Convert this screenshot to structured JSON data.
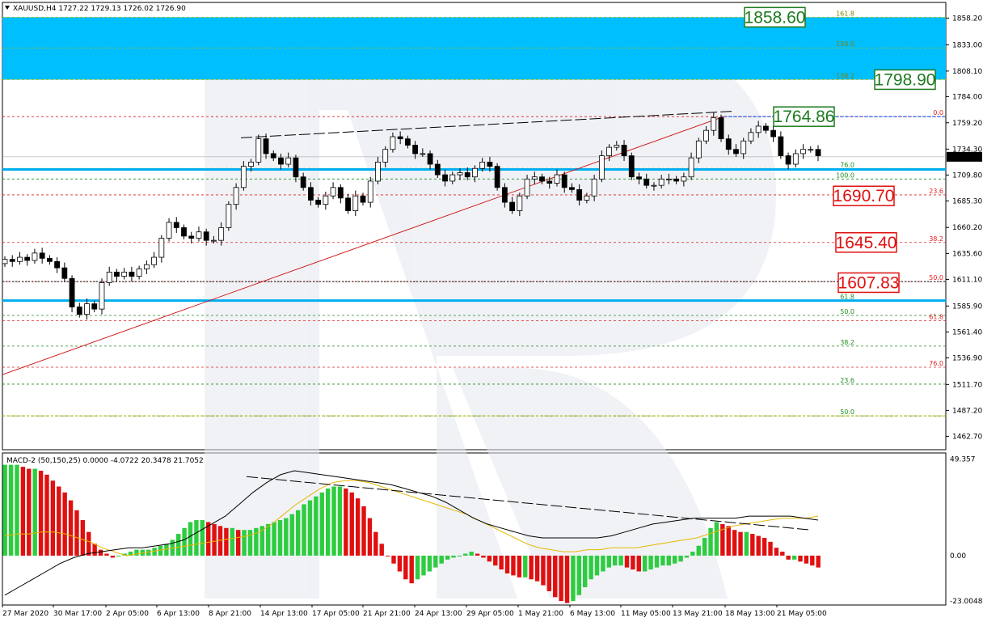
{
  "header": {
    "symbol": "XAUUSD,H4",
    "ohlc": "1727.22 1729.13 1726.02 1726.90"
  },
  "macd_header": "MACD-2 (50,150,25) 0.0000 -4.0722 20.3478 21.7052",
  "chart_data": {
    "type": "candlestick",
    "price_axis": {
      "range": [
        1450,
        1873
      ],
      "ticks": [
        "1858.20",
        "1833.00",
        "1808.10",
        "1784.00",
        "1759.20",
        "1734.30",
        "1709.80",
        "1685.30",
        "1660.20",
        "1635.60",
        "1611.10",
        "1585.90",
        "1561.40",
        "1536.90",
        "1511.70",
        "1487.20",
        "1462.70"
      ]
    },
    "current_price": "1726.90",
    "time_axis": [
      "27 Mar 2020",
      "30 Mar 17:00",
      "2 Apr 05:00",
      "6 Apr 13:00",
      "8 Apr 21:00",
      "14 Apr 13:00",
      "17 Apr 05:00",
      "21 Apr 21:00",
      "24 Apr 13:00",
      "29 Apr 05:00",
      "1 May 21:00",
      "6 May 13:00",
      "11 May 05:00",
      "13 May 21:00",
      "18 May 13:00",
      "21 May 05:00"
    ],
    "close_path": [
      1630,
      1628,
      1632,
      1629,
      1636,
      1631,
      1628,
      1622,
      1612,
      1585,
      1578,
      1588,
      1583,
      1608,
      1618,
      1614,
      1618,
      1614,
      1621,
      1625,
      1632,
      1650,
      1665,
      1660,
      1652,
      1650,
      1656,
      1648,
      1648,
      1660,
      1682,
      1698,
      1718,
      1722,
      1744,
      1730,
      1726,
      1720,
      1726,
      1708,
      1698,
      1686,
      1682,
      1690,
      1698,
      1688,
      1676,
      1690,
      1684,
      1704,
      1722,
      1734,
      1746,
      1744,
      1738,
      1730,
      1730,
      1720,
      1710,
      1704,
      1710,
      1712,
      1708,
      1716,
      1722,
      1718,
      1698,
      1684,
      1676,
      1690,
      1706,
      1708,
      1704,
      1702,
      1710,
      1698,
      1696,
      1686,
      1690,
      1706,
      1728,
      1736,
      1738,
      1728,
      1708,
      1706,
      1700,
      1700,
      1706,
      1706,
      1704,
      1708,
      1726,
      1742,
      1752,
      1764,
      1744,
      1734,
      1730,
      1742,
      1750,
      1756,
      1752,
      1746,
      1728,
      1720,
      1730,
      1734,
      1734,
      1728
    ],
    "levels": [
      {
        "price": "1858.60",
        "label": "1858.60",
        "color": "#1e7a1e"
      },
      {
        "price": "1798.90",
        "label": "1798.90",
        "color": "#1e7a1e"
      },
      {
        "price": "1764.86",
        "label": "1764.86",
        "color": "#1e7a1e"
      },
      {
        "price": "1690.70",
        "label": "1690.70",
        "color": "#e01010"
      },
      {
        "price": "1645.40",
        "label": "1645.40",
        "color": "#e01010"
      },
      {
        "price": "1607.83",
        "label": "1607.83",
        "color": "#e01010"
      }
    ],
    "fib_red": [
      {
        "label": "0.0",
        "price": 1765
      },
      {
        "label": "23.6",
        "price": 1691
      },
      {
        "label": "38.2",
        "price": 1646
      },
      {
        "label": "50.0",
        "price": 1609
      },
      {
        "label": "61.8",
        "price": 1572
      },
      {
        "label": "76.0",
        "price": 1528
      }
    ],
    "fib_green": [
      {
        "label": "161.8",
        "price": 1859
      },
      {
        "label": "150.0",
        "price": 1830
      },
      {
        "label": "138.2",
        "price": 1800
      },
      {
        "label": "100.0",
        "price": 1706
      },
      {
        "label": "76.0",
        "price": 1716
      },
      {
        "label": "61.8",
        "price": 1591
      },
      {
        "label": "50.0",
        "price": 1577
      },
      {
        "label": "38.2",
        "price": 1548
      },
      {
        "label": "23.6",
        "price": 1512
      },
      {
        "label": "50.0",
        "price": 1482
      }
    ],
    "zones": [
      {
        "from": 1800,
        "to": 1859,
        "color": "#00bfff"
      }
    ],
    "blue_lines": [
      1715,
      1591
    ],
    "macd": {
      "axis_ticks": [
        "49.357",
        "0.00",
        "-23.0048"
      ],
      "range": [
        -25,
        52
      ],
      "histogram": [
        46,
        46,
        46,
        45,
        44,
        44,
        43,
        41,
        38,
        35,
        32,
        28,
        23,
        18,
        12,
        6,
        3,
        1,
        -1,
        0,
        1,
        2,
        3,
        3,
        3,
        4,
        5,
        6,
        8,
        11,
        14,
        17,
        18,
        18,
        17,
        16,
        15,
        14,
        14,
        13,
        13,
        13,
        14,
        15,
        16,
        17,
        18,
        19,
        21,
        23,
        26,
        28,
        30,
        32,
        34,
        35,
        35,
        34,
        32,
        29,
        25,
        19,
        12,
        6,
        0,
        -4,
        -8,
        -12,
        -14,
        -12,
        -10,
        -8,
        -6,
        -4,
        -2,
        -1,
        0,
        1,
        2,
        1,
        -1,
        -3,
        -5,
        -7,
        -9,
        -10,
        -11,
        -11,
        -12,
        -13,
        -15,
        -18,
        -21,
        -23,
        -24,
        -23,
        -20,
        -16,
        -12,
        -10,
        -8,
        -6,
        -5,
        -5,
        -6,
        -7,
        -8,
        -8,
        -7,
        -6,
        -5,
        -5,
        -4,
        -3,
        -1,
        2,
        5,
        9,
        14,
        17,
        16,
        15,
        13,
        12,
        12,
        11,
        10,
        9,
        7,
        4,
        2,
        -2,
        -2,
        -3,
        -4,
        -5,
        -6
      ],
      "signal": [
        10,
        11,
        11,
        12,
        12,
        11,
        9,
        7,
        4,
        2,
        0,
        1,
        2,
        3,
        4,
        5,
        6,
        7,
        8,
        9,
        10,
        12,
        16,
        21,
        26,
        30,
        34,
        37,
        38,
        38,
        37,
        35,
        33,
        31,
        29,
        27,
        25,
        23,
        21,
        18,
        15,
        12,
        9,
        6,
        4,
        3,
        2,
        2,
        3,
        3,
        4,
        4,
        4,
        5,
        6,
        7,
        8,
        9,
        11,
        13,
        15,
        16,
        17,
        18,
        19,
        19,
        19,
        20
      ],
      "main": [
        -20,
        -16,
        -12,
        -8,
        -4,
        -1,
        1,
        2,
        3,
        4,
        4,
        5,
        6,
        8,
        12,
        16,
        20,
        26,
        32,
        37,
        41,
        43,
        42,
        41,
        40,
        39,
        38,
        37,
        36,
        34,
        32,
        30,
        27,
        23,
        19,
        16,
        14,
        12,
        10,
        9,
        9,
        9,
        9,
        9,
        10,
        12,
        14,
        16,
        17,
        18,
        19,
        19,
        19,
        19,
        20,
        20,
        20,
        20,
        19,
        18
      ]
    }
  }
}
